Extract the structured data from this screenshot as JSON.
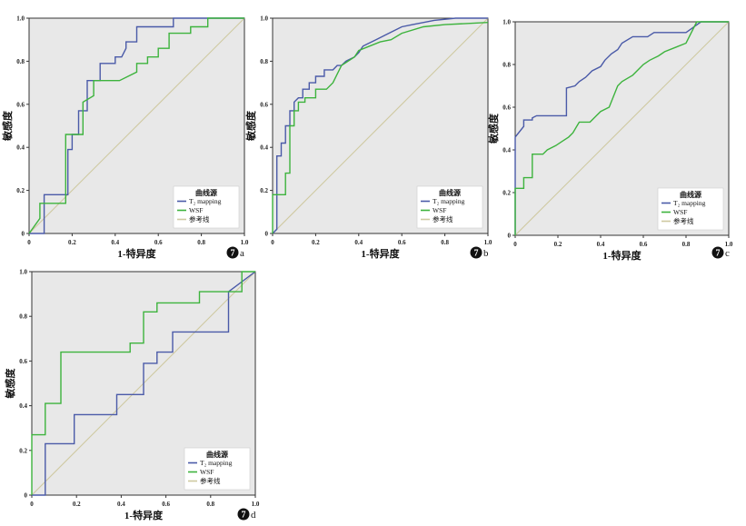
{
  "figure": {
    "panels": [
      {
        "label_num": "7",
        "label_letter": "a"
      },
      {
        "label_num": "7",
        "label_letter": "b"
      },
      {
        "label_num": "7",
        "label_letter": "c"
      },
      {
        "label_num": "7",
        "label_letter": "d"
      }
    ]
  },
  "colors": {
    "t2": "#4a5aa8",
    "wsf": "#3db33d",
    "ref": "#cfc9a0",
    "plot_bg": "#e8e8e8",
    "axis": "#333333"
  },
  "chart_data": [
    {
      "type": "line",
      "title": "",
      "xlabel": "1-特异度",
      "ylabel": "敏感度",
      "xlim": [
        0,
        1
      ],
      "ylim": [
        0,
        1
      ],
      "xticks": [
        "0",
        "0.2",
        "0.4",
        "0.6",
        "0.8",
        "1.0"
      ],
      "yticks": [
        "0",
        "0.2",
        "0.4",
        "0.6",
        "0.8",
        "1.0"
      ],
      "legend": {
        "title": "曲线源",
        "position": "bottom-right",
        "entries": [
          "T₂ mapping",
          "WSF",
          "参考线"
        ]
      },
      "series": [
        {
          "name": "T₂ mapping",
          "x": [
            0,
            0.07,
            0.07,
            0.07,
            0.18,
            0.18,
            0.2,
            0.2,
            0.23,
            0.23,
            0.27,
            0.27,
            0.33,
            0.33,
            0.37,
            0.4,
            0.4,
            0.43,
            0.45,
            0.45,
            0.5,
            0.5,
            0.5,
            0.6,
            0.6,
            0.67,
            0.67,
            1
          ],
          "y": [
            0,
            0,
            0.07,
            0.18,
            0.18,
            0.39,
            0.39,
            0.46,
            0.46,
            0.57,
            0.57,
            0.71,
            0.71,
            0.79,
            0.79,
            0.79,
            0.82,
            0.82,
            0.86,
            0.89,
            0.89,
            0.93,
            0.96,
            0.96,
            0.96,
            0.96,
            1,
            1
          ]
        },
        {
          "name": "WSF",
          "x": [
            0,
            0.05,
            0.05,
            0.17,
            0.17,
            0.2,
            0.25,
            0.25,
            0.3,
            0.3,
            0.35,
            0.35,
            0.42,
            0.5,
            0.5,
            0.55,
            0.55,
            0.6,
            0.6,
            0.65,
            0.65,
            0.75,
            0.75,
            0.83,
            0.83,
            1
          ],
          "y": [
            0,
            0.07,
            0.14,
            0.14,
            0.46,
            0.46,
            0.46,
            0.61,
            0.64,
            0.71,
            0.71,
            0.71,
            0.71,
            0.75,
            0.79,
            0.79,
            0.82,
            0.82,
            0.86,
            0.86,
            0.93,
            0.93,
            0.96,
            0.96,
            1,
            1
          ]
        },
        {
          "name": "参考线",
          "x": [
            0,
            1
          ],
          "y": [
            0,
            1
          ]
        }
      ]
    },
    {
      "type": "line",
      "title": "",
      "xlabel": "1-特异度",
      "ylabel": "敏感度",
      "xlim": [
        0,
        1
      ],
      "ylim": [
        0,
        1
      ],
      "xticks": [
        "0",
        "0.2",
        "0.4",
        "0.6",
        "0.8",
        "1.0"
      ],
      "yticks": [
        "0",
        "0.2",
        "0.4",
        "0.6",
        "0.8",
        "1.0"
      ],
      "legend": {
        "title": "曲线源",
        "position": "bottom-right",
        "entries": [
          "T₂ mapping",
          "WSF",
          "参考线"
        ]
      },
      "series": [
        {
          "name": "T₂ mapping",
          "x": [
            0,
            0.02,
            0.02,
            0.04,
            0.04,
            0.06,
            0.06,
            0.08,
            0.08,
            0.1,
            0.1,
            0.12,
            0.14,
            0.14,
            0.17,
            0.17,
            0.2,
            0.2,
            0.24,
            0.24,
            0.28,
            0.3,
            0.32,
            0.34,
            0.38,
            0.4,
            0.42,
            0.44,
            0.48,
            0.52,
            0.56,
            0.6,
            0.65,
            0.75,
            0.85,
            1
          ],
          "y": [
            0,
            0.02,
            0.36,
            0.36,
            0.42,
            0.42,
            0.5,
            0.5,
            0.57,
            0.57,
            0.61,
            0.63,
            0.63,
            0.67,
            0.67,
            0.7,
            0.7,
            0.73,
            0.73,
            0.76,
            0.76,
            0.78,
            0.78,
            0.8,
            0.82,
            0.84,
            0.87,
            0.88,
            0.9,
            0.92,
            0.94,
            0.96,
            0.97,
            0.99,
            1,
            1
          ]
        },
        {
          "name": "WSF",
          "x": [
            0,
            0,
            0.06,
            0.06,
            0.08,
            0.08,
            0.1,
            0.1,
            0.12,
            0.12,
            0.15,
            0.15,
            0.2,
            0.2,
            0.25,
            0.28,
            0.3,
            0.32,
            0.35,
            0.38,
            0.4,
            0.45,
            0.5,
            0.55,
            0.6,
            0.7,
            0.8,
            1
          ],
          "y": [
            0,
            0.18,
            0.18,
            0.28,
            0.28,
            0.5,
            0.5,
            0.57,
            0.57,
            0.61,
            0.61,
            0.63,
            0.63,
            0.67,
            0.67,
            0.7,
            0.74,
            0.78,
            0.8,
            0.82,
            0.85,
            0.87,
            0.89,
            0.9,
            0.93,
            0.96,
            0.97,
            0.98
          ]
        },
        {
          "name": "参考线",
          "x": [
            0,
            1
          ],
          "y": [
            0,
            1
          ]
        }
      ]
    },
    {
      "type": "line",
      "title": "",
      "xlabel": "1-特异度",
      "ylabel": "敏感度",
      "xlim": [
        0,
        1
      ],
      "ylim": [
        0,
        1
      ],
      "xticks": [
        "0",
        "0.2",
        "0.4",
        "0.6",
        "0.8",
        "1.0"
      ],
      "yticks": [
        "0",
        "0.2",
        "0.4",
        "0.6",
        "0.8",
        "1.0"
      ],
      "legend": {
        "title": "曲线源",
        "position": "bottom-right",
        "entries": [
          "T₂ mapping",
          "WSF",
          "参考线"
        ]
      },
      "series": [
        {
          "name": "T₂ mapping",
          "x": [
            0,
            0,
            0.04,
            0.04,
            0.08,
            0.08,
            0.1,
            0.24,
            0.24,
            0.28,
            0.3,
            0.33,
            0.36,
            0.4,
            0.42,
            0.45,
            0.48,
            0.5,
            0.55,
            0.62,
            0.65,
            0.8,
            0.87,
            1
          ],
          "y": [
            0,
            0.46,
            0.51,
            0.54,
            0.54,
            0.55,
            0.56,
            0.56,
            0.69,
            0.7,
            0.72,
            0.74,
            0.77,
            0.79,
            0.82,
            0.85,
            0.87,
            0.9,
            0.93,
            0.93,
            0.95,
            0.95,
            1,
            1
          ]
        },
        {
          "name": "WSF",
          "x": [
            0,
            0,
            0.04,
            0.04,
            0.08,
            0.08,
            0.13,
            0.15,
            0.19,
            0.22,
            0.25,
            0.27,
            0.3,
            0.35,
            0.38,
            0.4,
            0.44,
            0.48,
            0.5,
            0.55,
            0.6,
            0.63,
            0.67,
            0.7,
            0.75,
            0.8,
            0.85,
            1
          ],
          "y": [
            0,
            0.22,
            0.22,
            0.27,
            0.27,
            0.38,
            0.38,
            0.4,
            0.42,
            0.44,
            0.46,
            0.48,
            0.53,
            0.53,
            0.56,
            0.58,
            0.6,
            0.7,
            0.72,
            0.75,
            0.8,
            0.82,
            0.84,
            0.86,
            0.88,
            0.9,
            1,
            1
          ]
        },
        {
          "name": "参考线",
          "x": [
            0,
            1
          ],
          "y": [
            0,
            1
          ]
        }
      ]
    },
    {
      "type": "line",
      "title": "",
      "xlabel": "1-特异度",
      "ylabel": "敏感度",
      "xlim": [
        0,
        1
      ],
      "ylim": [
        0,
        1
      ],
      "xticks": [
        "0",
        "0.2",
        "0.4",
        "0.6",
        "0.8",
        "1.0"
      ],
      "yticks": [
        "0",
        "0.2",
        "0.4",
        "0.6",
        "0.8",
        "1.0"
      ],
      "legend": {
        "title": "曲线源",
        "position": "bottom-right",
        "entries": [
          "T₂ mapping",
          "WSF",
          "参考线"
        ]
      },
      "series": [
        {
          "name": "T₂ mapping",
          "x": [
            0,
            0.06,
            0.06,
            0.19,
            0.19,
            0.38,
            0.38,
            0.5,
            0.5,
            0.56,
            0.56,
            0.63,
            0.63,
            0.88,
            0.88,
            1
          ],
          "y": [
            0,
            0,
            0.23,
            0.23,
            0.36,
            0.36,
            0.45,
            0.45,
            0.59,
            0.59,
            0.64,
            0.64,
            0.73,
            0.73,
            0.91,
            1
          ]
        },
        {
          "name": "WSF",
          "x": [
            0,
            0,
            0.06,
            0.06,
            0.13,
            0.13,
            0.44,
            0.44,
            0.5,
            0.5,
            0.56,
            0.56,
            0.75,
            0.75,
            0.94,
            0.94,
            1
          ],
          "y": [
            0,
            0.27,
            0.27,
            0.41,
            0.41,
            0.64,
            0.64,
            0.68,
            0.68,
            0.82,
            0.82,
            0.86,
            0.86,
            0.91,
            0.91,
            1,
            1
          ]
        },
        {
          "name": "参考线",
          "x": [
            0,
            1
          ],
          "y": [
            0,
            1
          ]
        }
      ]
    }
  ]
}
